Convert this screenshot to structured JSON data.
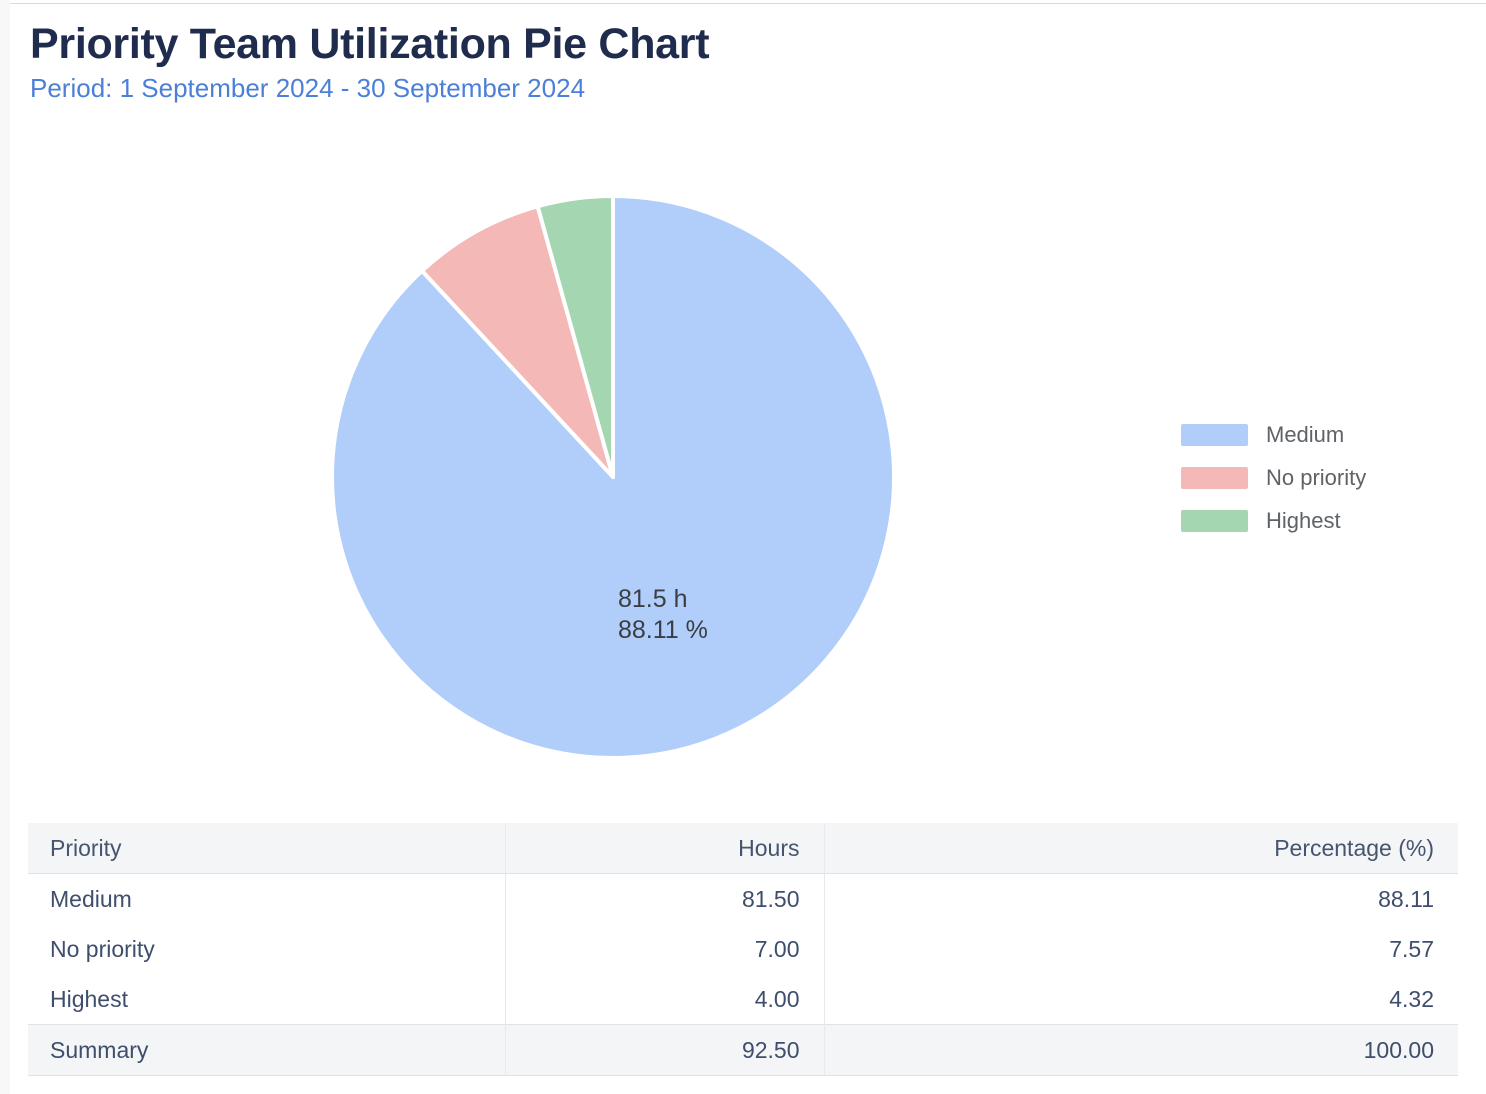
{
  "page": {
    "title": "Priority Team Utilization Pie Chart",
    "period": "Period: 1 September 2024 - 30 September 2024"
  },
  "colors": {
    "title_text": "#202c4e",
    "period_text": "#4c80d8",
    "table_text": "#3e4e6c",
    "table_header_bg": "#f4f5f7",
    "summary_row_bg": "#f4f5f7",
    "legend_text": "#5f6367"
  },
  "chart_data": {
    "type": "pie",
    "title": "Priority Team Utilization Pie Chart",
    "subtitle": "Period: 1 September 2024 - 30 September 2024",
    "direction": "clockwise",
    "start_angle_deg": 0,
    "legend_position": "right",
    "slice_border_color": "#ffffff",
    "slices": [
      {
        "label": "Medium",
        "hours": 81.5,
        "percent": 88.11,
        "color": "#b1cdfa"
      },
      {
        "label": "No priority",
        "hours": 7.0,
        "percent": 7.57,
        "color": "#f4b9b6"
      },
      {
        "label": "Highest",
        "hours": 4.0,
        "percent": 4.32,
        "color": "#a4d6b1"
      }
    ],
    "total_hours": 92.5,
    "total_percent": 100.0,
    "center_label": {
      "applies_to": "Medium",
      "line1": "81.5 h",
      "line2": "88.11 %"
    }
  },
  "table": {
    "columns": [
      "Priority",
      "Hours",
      "Percentage (%)"
    ],
    "rows": [
      [
        "Medium",
        "81.50",
        "88.11"
      ],
      [
        "No priority",
        "7.00",
        "7.57"
      ],
      [
        "Highest",
        "4.00",
        "4.32"
      ]
    ],
    "summary_row": [
      "Summary",
      "92.50",
      "100.00"
    ]
  }
}
